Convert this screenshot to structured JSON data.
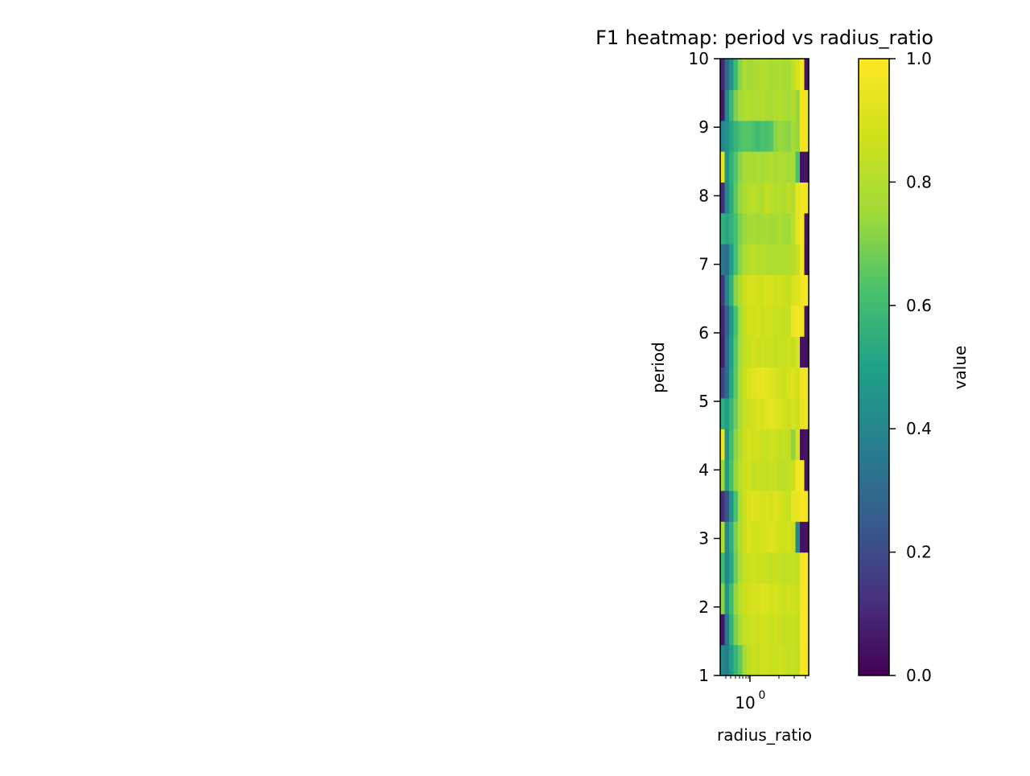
{
  "chart_data": {
    "type": "heatmap",
    "title": "F1 heatmap: period vs radius_ratio",
    "xlabel": "radius_ratio",
    "ylabel": "period",
    "x_scale": "log",
    "y_range": [
      1,
      10
    ],
    "y_ticks": [
      "1",
      "2",
      "3",
      "4",
      "5",
      "6",
      "7",
      "8",
      "9",
      "10"
    ],
    "x_tick_label": "10",
    "x_tick_exponent": "0",
    "colorbar": {
      "label": "value",
      "range": [
        0,
        1
      ],
      "ticks": [
        "0.0",
        "0.2",
        "0.4",
        "0.6",
        "0.8",
        "1.0"
      ]
    },
    "colormap": "viridis",
    "grid": false,
    "rows": 20,
    "cols": 20,
    "values": [
      [
        0.42,
        0.36,
        0.48,
        0.58,
        0.66,
        0.76,
        0.82,
        0.86,
        0.84,
        0.88,
        0.87,
        0.86,
        0.85,
        0.88,
        0.86,
        0.84,
        0.85,
        0.83,
        0.98,
        0.97
      ],
      [
        0.05,
        0.34,
        0.56,
        0.7,
        0.78,
        0.84,
        0.85,
        0.87,
        0.86,
        0.88,
        0.87,
        0.85,
        0.87,
        0.86,
        0.84,
        0.85,
        0.86,
        0.84,
        0.99,
        0.98
      ],
      [
        0.72,
        0.46,
        0.6,
        0.74,
        0.82,
        0.86,
        0.88,
        0.9,
        0.89,
        0.91,
        0.9,
        0.88,
        0.89,
        0.87,
        0.86,
        0.88,
        0.87,
        0.85,
        0.98,
        0.99
      ],
      [
        0.6,
        0.4,
        0.52,
        0.68,
        0.78,
        0.84,
        0.86,
        0.87,
        0.85,
        0.86,
        0.85,
        0.84,
        0.86,
        0.85,
        0.83,
        0.84,
        0.85,
        0.84,
        0.97,
        0.98
      ],
      [
        0.8,
        0.42,
        0.55,
        0.7,
        0.8,
        0.86,
        0.9,
        0.88,
        0.87,
        0.89,
        0.9,
        0.91,
        0.9,
        0.88,
        0.87,
        0.89,
        0.86,
        0.4,
        0.04,
        0.05
      ],
      [
        0.12,
        0.22,
        0.44,
        0.62,
        0.8,
        0.86,
        0.9,
        0.92,
        0.91,
        0.89,
        0.9,
        0.88,
        0.91,
        0.9,
        0.87,
        0.85,
        0.94,
        0.95,
        0.98,
        0.97
      ],
      [
        0.75,
        0.48,
        0.62,
        0.74,
        0.82,
        0.86,
        0.88,
        0.84,
        0.86,
        0.85,
        0.84,
        0.86,
        0.85,
        0.83,
        0.82,
        0.84,
        0.86,
        0.97,
        0.98,
        0.05
      ],
      [
        0.96,
        0.44,
        0.6,
        0.72,
        0.8,
        0.86,
        0.89,
        0.87,
        0.88,
        0.86,
        0.85,
        0.87,
        0.86,
        0.84,
        0.85,
        0.83,
        0.72,
        0.9,
        0.04,
        0.05
      ],
      [
        0.55,
        0.5,
        0.58,
        0.68,
        0.78,
        0.84,
        0.86,
        0.88,
        0.9,
        0.89,
        0.92,
        0.94,
        0.92,
        0.9,
        0.88,
        0.86,
        0.9,
        0.86,
        0.95,
        0.96
      ],
      [
        0.18,
        0.3,
        0.52,
        0.66,
        0.78,
        0.86,
        0.9,
        0.92,
        0.94,
        0.95,
        0.93,
        0.92,
        0.9,
        0.88,
        0.86,
        0.89,
        0.91,
        0.88,
        0.96,
        0.97
      ],
      [
        0.08,
        0.3,
        0.5,
        0.65,
        0.76,
        0.84,
        0.85,
        0.88,
        0.86,
        0.87,
        0.85,
        0.86,
        0.84,
        0.86,
        0.85,
        0.87,
        0.84,
        0.9,
        0.05,
        0.04
      ],
      [
        0.1,
        0.26,
        0.46,
        0.62,
        0.76,
        0.84,
        0.88,
        0.87,
        0.89,
        0.86,
        0.88,
        0.87,
        0.85,
        0.86,
        0.84,
        0.85,
        0.97,
        0.98,
        0.96,
        0.05
      ],
      [
        0.14,
        0.4,
        0.56,
        0.72,
        0.8,
        0.86,
        0.89,
        0.9,
        0.88,
        0.87,
        0.9,
        0.89,
        0.87,
        0.88,
        0.86,
        0.84,
        0.9,
        0.92,
        0.97,
        0.98
      ],
      [
        0.35,
        0.3,
        0.48,
        0.62,
        0.72,
        0.78,
        0.8,
        0.82,
        0.8,
        0.81,
        0.8,
        0.79,
        0.8,
        0.78,
        0.79,
        0.8,
        0.81,
        0.85,
        0.97,
        0.04
      ],
      [
        0.56,
        0.52,
        0.56,
        0.62,
        0.7,
        0.74,
        0.76,
        0.77,
        0.75,
        0.76,
        0.77,
        0.75,
        0.76,
        0.78,
        0.76,
        0.75,
        0.82,
        0.93,
        0.97,
        0.05
      ],
      [
        0.12,
        0.4,
        0.54,
        0.66,
        0.74,
        0.78,
        0.8,
        0.82,
        0.8,
        0.79,
        0.84,
        0.82,
        0.8,
        0.81,
        0.79,
        0.83,
        0.8,
        0.93,
        0.97,
        0.96
      ],
      [
        0.95,
        0.45,
        0.56,
        0.64,
        0.72,
        0.76,
        0.78,
        0.77,
        0.79,
        0.76,
        0.78,
        0.8,
        0.77,
        0.79,
        0.78,
        0.76,
        0.78,
        0.62,
        0.04,
        0.05
      ],
      [
        0.4,
        0.44,
        0.52,
        0.58,
        0.62,
        0.64,
        0.64,
        0.62,
        0.6,
        0.63,
        0.62,
        0.64,
        0.72,
        0.74,
        0.73,
        0.72,
        0.76,
        0.74,
        0.96,
        0.97
      ],
      [
        0.06,
        0.4,
        0.58,
        0.7,
        0.76,
        0.78,
        0.8,
        0.78,
        0.79,
        0.8,
        0.78,
        0.77,
        0.79,
        0.8,
        0.78,
        0.76,
        0.8,
        0.74,
        0.97,
        0.96
      ],
      [
        0.1,
        0.3,
        0.44,
        0.6,
        0.72,
        0.78,
        0.76,
        0.77,
        0.78,
        0.8,
        0.79,
        0.77,
        0.78,
        0.79,
        0.77,
        0.76,
        0.84,
        0.9,
        0.97,
        0.05
      ]
    ]
  }
}
